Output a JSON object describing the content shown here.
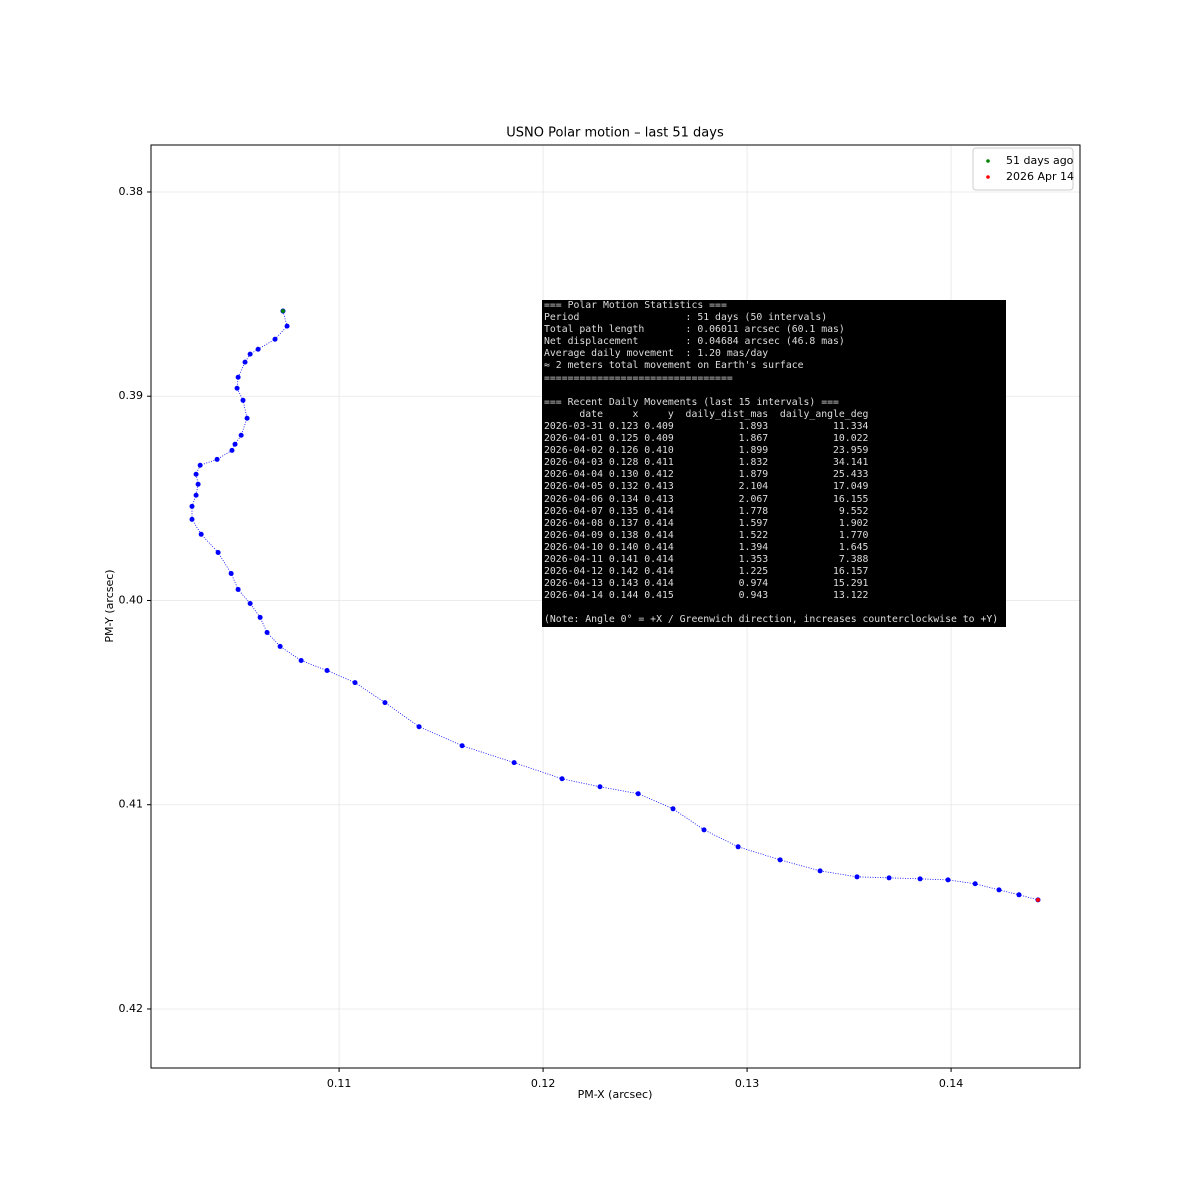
{
  "chart_data": {
    "type": "line",
    "title": "USNO Polar motion – last 51  days",
    "xlabel": "PM-X (arcsec)",
    "ylabel": "PM-Y (arcsec)",
    "xlim": [
      0.10078,
      0.14632
    ],
    "ylim": [
      0.42289,
      0.3777
    ],
    "xticks": [
      0.11,
      0.12,
      0.13,
      0.14
    ],
    "yticks": [
      0.38,
      0.39,
      {
        "value": 0.4,
        "label": "0.40"
      },
      0.41,
      0.42
    ],
    "grid": true,
    "legend": "upper right",
    "series": [
      {
        "color": "#0000ff",
        "x": [
          0.10725,
          0.10745,
          0.10686,
          0.10603,
          0.10564,
          0.10539,
          0.10505,
          0.105,
          0.10529,
          0.10549,
          0.1052,
          0.1049,
          0.10475,
          0.10402,
          0.10319,
          0.10299,
          0.10309,
          0.10299,
          0.10279,
          0.10279,
          0.10324,
          0.10407,
          0.10471,
          0.10505,
          0.10564,
          0.10613,
          0.10647,
          0.10711,
          0.10814,
          0.10941,
          0.11078,
          0.11225,
          0.11392,
          0.11603,
          0.11858,
          0.12093,
          0.12279,
          0.12466,
          0.12637,
          0.12789,
          0.12956,
          0.13162,
          0.13358,
          0.13539,
          0.13696,
          0.13848,
          0.13985,
          0.14118,
          0.14235,
          0.14333,
          0.14426
        ],
        "values": [
          0.38583,
          0.38657,
          0.38721,
          0.3877,
          0.38794,
          0.38833,
          0.38907,
          0.38961,
          0.3902,
          0.39108,
          0.39191,
          0.39235,
          0.39265,
          0.39309,
          0.39338,
          0.39382,
          0.39431,
          0.39485,
          0.39539,
          0.39603,
          0.39676,
          0.39765,
          0.39868,
          0.39946,
          0.40015,
          0.40083,
          0.40157,
          0.40225,
          0.40294,
          0.40343,
          0.40402,
          0.405,
          0.40618,
          0.40711,
          0.40794,
          0.40873,
          0.40912,
          0.40946,
          0.4102,
          0.41123,
          0.41206,
          0.4127,
          0.41324,
          0.41353,
          0.41358,
          0.41363,
          0.41368,
          0.41387,
          0.41417,
          0.41441,
          0.41466
        ]
      },
      {
        "name": "51 days ago",
        "color": "#008000",
        "x": [
          0.10725
        ],
        "values": [
          0.38583
        ]
      },
      {
        "name": "2026 Apr 14",
        "color": "#ff0000",
        "x": [
          0.14426
        ],
        "values": [
          0.41466
        ]
      }
    ],
    "annotation": {
      "blocks": [
        [
          "=== Polar Motion Statistics ===",
          "Period                  : 51 days (50 intervals)",
          "Total path length       : 0.06011 arcsec (60.1 mas)",
          "Net displacement        : 0.04684 arcsec (46.8 mas)",
          "Average daily movement  : 1.20 mas/day",
          "≈ 2 meters total movement on Earth's surface",
          "================================"
        ],
        [
          "=== Recent Daily Movements (last 15 intervals) ===",
          "      date     x     y  daily_dist_mas  daily_angle_deg",
          "2026-03-31 0.123 0.409           1.893           11.334",
          "2026-04-01 0.125 0.409           1.867           10.022",
          "2026-04-02 0.126 0.410           1.899           23.959",
          "2026-04-03 0.128 0.411           1.832           34.141",
          "2026-04-04 0.130 0.412           1.879           25.433",
          "2026-04-05 0.132 0.413           2.104           17.049",
          "2026-04-06 0.134 0.413           2.067           16.155",
          "2026-04-07 0.135 0.414           1.778            9.552",
          "2026-04-08 0.137 0.414           1.597            1.902",
          "2026-04-09 0.138 0.414           1.522            1.770",
          "2026-04-10 0.140 0.414           1.394            1.645",
          "2026-04-11 0.141 0.414           1.353            7.388",
          "2026-04-12 0.142 0.414           1.225           16.157",
          "2026-04-13 0.143 0.414           0.974           15.291",
          "2026-04-14 0.144 0.415           0.943           13.122"
        ],
        [
          "(Note: Angle 0° = +X / Greenwich direction, increases counterclockwise to +Y)"
        ]
      ]
    }
  }
}
